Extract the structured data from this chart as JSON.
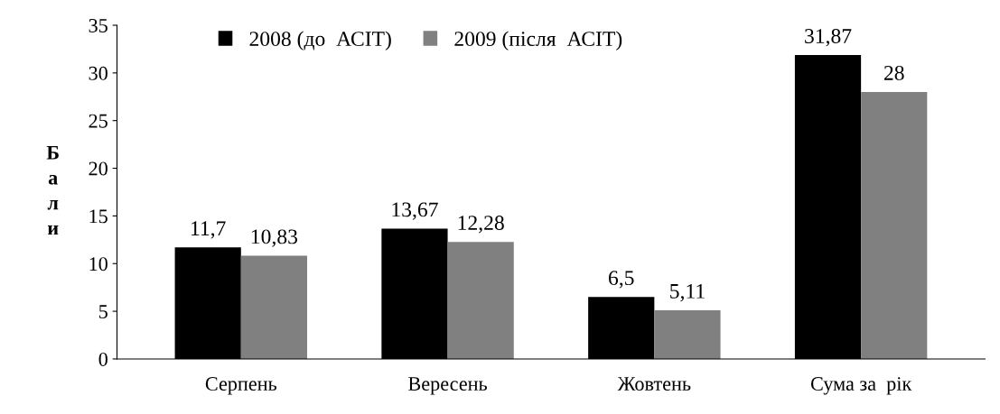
{
  "chart_data": {
    "type": "bar",
    "ylabel": "Бали",
    "categories": [
      "Серпень",
      "Вересень",
      "Жовтень",
      "Сума за  рік"
    ],
    "series": [
      {
        "name": "2008 (до  АСІТ)",
        "color": "#000000",
        "values": [
          11.7,
          13.67,
          6.5,
          31.87
        ],
        "value_labels": [
          "11,7",
          "13,67",
          "6,5",
          "31,87"
        ]
      },
      {
        "name": "2009 (після  АСІТ)",
        "color": "#808080",
        "values": [
          10.83,
          12.28,
          5.11,
          28
        ],
        "value_labels": [
          "10,83",
          "12,28",
          "5,11",
          "28"
        ]
      }
    ],
    "ylim": [
      0,
      35
    ],
    "yticks": [
      0,
      5,
      10,
      15,
      20,
      25,
      30,
      35
    ],
    "grid": false,
    "legend": "top"
  }
}
